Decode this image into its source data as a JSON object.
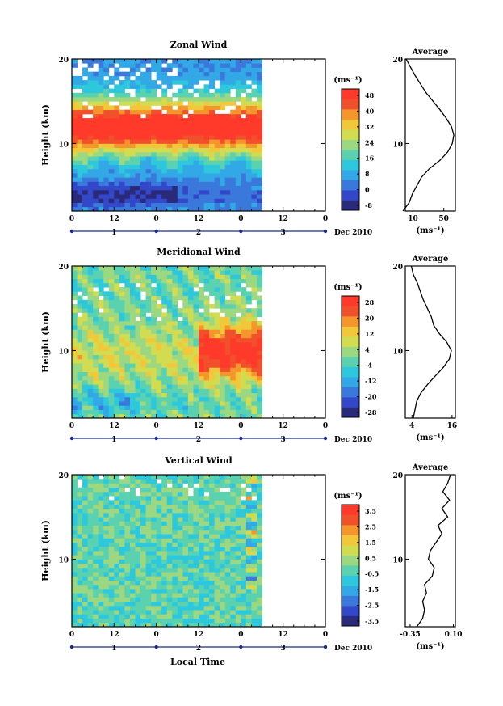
{
  "figure": {
    "xlabel": "Local Time",
    "date_label": "Dec 2010",
    "day_labels": [
      "1",
      "2",
      "3"
    ],
    "hour_ticks": [
      "0",
      "12",
      "0",
      "12",
      "0",
      "12",
      "0"
    ],
    "colorscale": [
      "#2a2a7a",
      "#3248c8",
      "#3a78dc",
      "#32a8e6",
      "#2ec8dc",
      "#5ad2b0",
      "#9cd882",
      "#d2dc50",
      "#f2c83a",
      "#f5962d",
      "#f0502a",
      "#ff3a2a"
    ]
  },
  "chart_data": [
    {
      "type": "heatmap",
      "title": "Zonal Wind",
      "ylabel": "Height (km)",
      "xlabel": "Local Time",
      "x_range_hours": [
        0,
        72
      ],
      "data_end_hour": 54,
      "ylim": [
        2,
        20
      ],
      "yticks": [
        "10",
        "20"
      ],
      "colorbar": {
        "unit": "(ms⁻¹)",
        "ticks": [
          "48",
          "40",
          "32",
          "24",
          "16",
          "8",
          "0",
          "-8"
        ],
        "min": -12,
        "max": 52
      },
      "profile": {
        "title": "Average",
        "xlabel": "(ms⁻¹)",
        "xticks": [
          "10",
          "50"
        ],
        "xlim": [
          0,
          65
        ],
        "heights": [
          2,
          3,
          4,
          5,
          6,
          7,
          8,
          9,
          10,
          11,
          12,
          13,
          14,
          15,
          16,
          17,
          18,
          19,
          20
        ],
        "values": [
          -3,
          5,
          9,
          15,
          21,
          31,
          45,
          55,
          61,
          63,
          60,
          53,
          45,
          36,
          27,
          20,
          13,
          7,
          1
        ]
      }
    },
    {
      "type": "heatmap",
      "title": "Meridional Wind",
      "ylabel": "Height (km)",
      "xlabel": "Local Time",
      "x_range_hours": [
        0,
        72
      ],
      "data_end_hour": 54,
      "ylim": [
        2,
        20
      ],
      "yticks": [
        "10",
        "20"
      ],
      "colorbar": {
        "unit": "(ms⁻¹)",
        "ticks": [
          "28",
          "20",
          "12",
          "4",
          "-4",
          "-12",
          "-20",
          "-28"
        ],
        "min": -30,
        "max": 32
      },
      "profile": {
        "title": "Average",
        "xlabel": "(ms⁻¹)",
        "xticks": [
          "4",
          "16"
        ],
        "xlim": [
          2,
          17
        ],
        "heights": [
          2,
          3,
          4,
          5,
          6,
          7,
          8,
          9,
          10,
          11,
          12,
          13,
          14,
          15,
          16,
          17,
          18,
          19,
          20
        ],
        "values": [
          4.4,
          4.9,
          5.4,
          6.7,
          8.7,
          11.0,
          13.4,
          15.2,
          15.8,
          14.4,
          12.2,
          10.5,
          9.8,
          8.6,
          7.4,
          6.5,
          5.6,
          4.4,
          3.8
        ]
      }
    },
    {
      "type": "heatmap",
      "title": "Vertical Wind",
      "ylabel": "Height (km)",
      "xlabel": "Local Time",
      "x_range_hours": [
        0,
        72
      ],
      "data_end_hour": 54,
      "ylim": [
        2,
        20
      ],
      "yticks": [
        "10",
        "20"
      ],
      "colorbar": {
        "unit": "(ms⁻¹)",
        "ticks": [
          "3.5",
          "2.5",
          "1.5",
          "0.5",
          "-0.5",
          "-1.5",
          "-2.5",
          "-3.5"
        ],
        "min": -4,
        "max": 4
      },
      "profile": {
        "title": "Average",
        "xlabel": "(ms⁻¹)",
        "xticks": [
          "-0.35",
          "0.10"
        ],
        "xlim": [
          -0.4,
          0.12
        ],
        "heights": [
          2,
          3,
          4,
          5,
          6,
          7,
          8,
          9,
          10,
          11,
          12,
          13,
          14,
          15,
          16,
          17,
          18,
          19,
          20
        ],
        "values": [
          -0.28,
          -0.22,
          -0.2,
          -0.22,
          -0.18,
          -0.2,
          -0.12,
          -0.1,
          -0.16,
          -0.14,
          -0.08,
          -0.02,
          -0.06,
          0.04,
          -0.02,
          0.06,
          -0.01,
          0.04,
          0.07
        ]
      }
    }
  ]
}
